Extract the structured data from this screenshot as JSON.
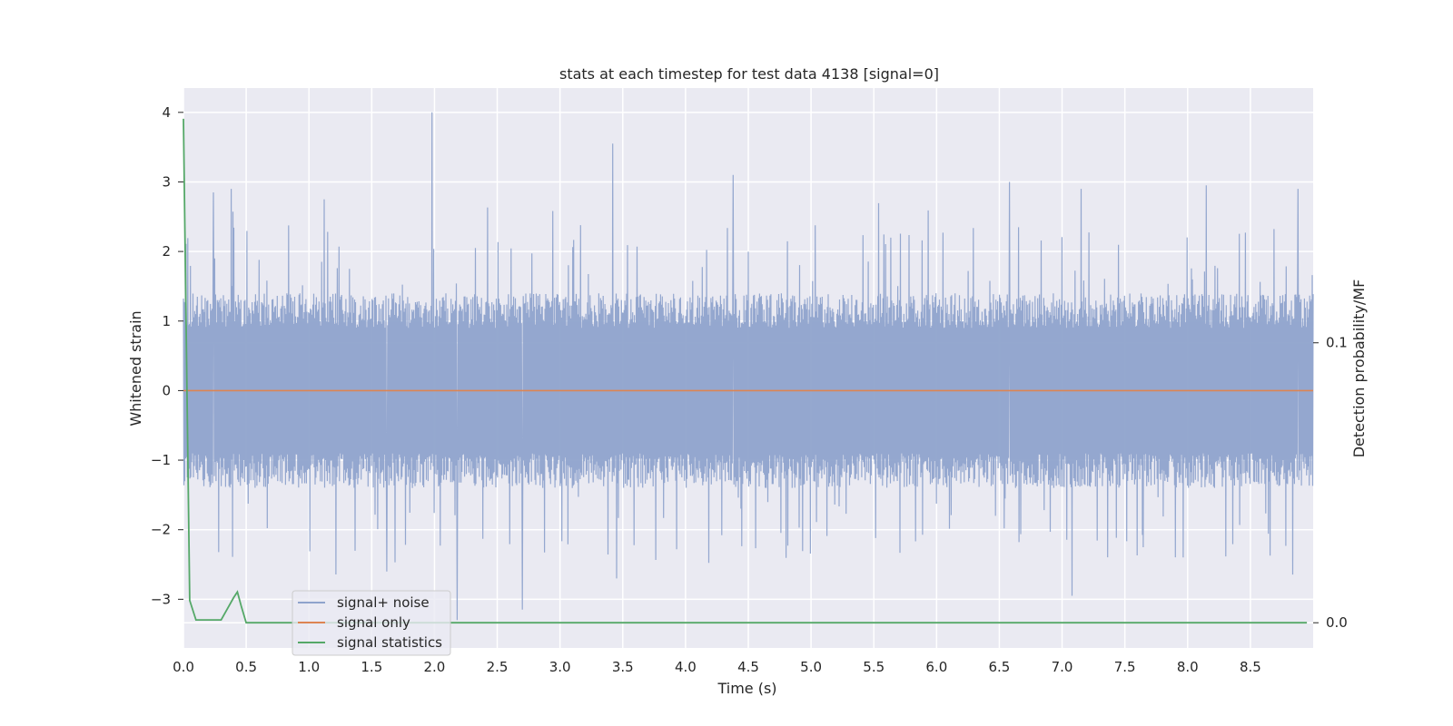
{
  "chart_data": {
    "type": "line",
    "title": "stats at each timestep for test data 4138 [signal=0]",
    "xlabel": "Time (s)",
    "ylabel": "Whitened strain",
    "ylabel_right": "Detection probability/MF",
    "xlim": [
      0.0,
      9.0
    ],
    "ylim": [
      -3.7,
      4.35
    ],
    "ylim_right": [
      -0.009,
      0.191
    ],
    "x_ticks": [
      "0.0",
      "0.5",
      "1.0",
      "1.5",
      "2.0",
      "2.5",
      "3.0",
      "3.5",
      "4.0",
      "4.5",
      "5.0",
      "5.5",
      "6.0",
      "6.5",
      "7.0",
      "7.5",
      "8.0",
      "8.5"
    ],
    "y_ticks": [
      "4",
      "3",
      "2",
      "1",
      "0",
      "−1",
      "−2",
      "−3"
    ],
    "y_right_ticks": [
      "0.1",
      "0.0"
    ],
    "grid": true,
    "legend_position": "lower-left",
    "colors": {
      "background": "#eaeaf2",
      "grid": "#ffffff",
      "signal_noise": "#8fa3cc",
      "signal_only": "#dd8452",
      "signal_statistics": "#55a868"
    },
    "series": [
      {
        "name": "signal+ noise",
        "description_range": [
          -3.35,
          4.0
        ],
        "spikes": [
          {
            "x": 1.98,
            "y": 4.0
          },
          {
            "x": 3.42,
            "y": 3.55
          },
          {
            "x": 4.38,
            "y": 3.1
          },
          {
            "x": 6.58,
            "y": 3.0
          },
          {
            "x": 8.15,
            "y": 2.95
          },
          {
            "x": 8.88,
            "y": 2.9
          },
          {
            "x": 0.38,
            "y": 2.9
          },
          {
            "x": 0.24,
            "y": 2.85
          },
          {
            "x": 1.12,
            "y": 2.75
          },
          {
            "x": 7.15,
            "y": 2.9
          },
          {
            "x": 2.18,
            "y": -3.3
          },
          {
            "x": 2.7,
            "y": -3.15
          },
          {
            "x": 7.08,
            "y": -2.95
          },
          {
            "x": 1.62,
            "y": -2.6
          },
          {
            "x": 3.45,
            "y": -2.7
          }
        ]
      },
      {
        "name": "signal only",
        "x": [
          0.0,
          9.0
        ],
        "y": [
          0.0,
          0.0
        ]
      },
      {
        "name": "signal statistics",
        "axis": "right",
        "x": [
          0.0,
          0.05,
          0.1,
          0.15,
          0.2,
          0.25,
          0.3,
          0.35,
          0.4,
          0.43,
          0.46,
          0.5,
          1.0,
          2.0,
          3.0,
          4.0,
          5.0,
          6.0,
          7.0,
          8.0,
          8.95
        ],
        "y": [
          0.18,
          0.008,
          0.001,
          0.001,
          0.001,
          0.001,
          0.001,
          0.005,
          0.009,
          0.011,
          0.006,
          0.0,
          0.0,
          0.0,
          0.0,
          0.0,
          0.0,
          0.0,
          0.0,
          0.0,
          0.0
        ]
      }
    ]
  }
}
